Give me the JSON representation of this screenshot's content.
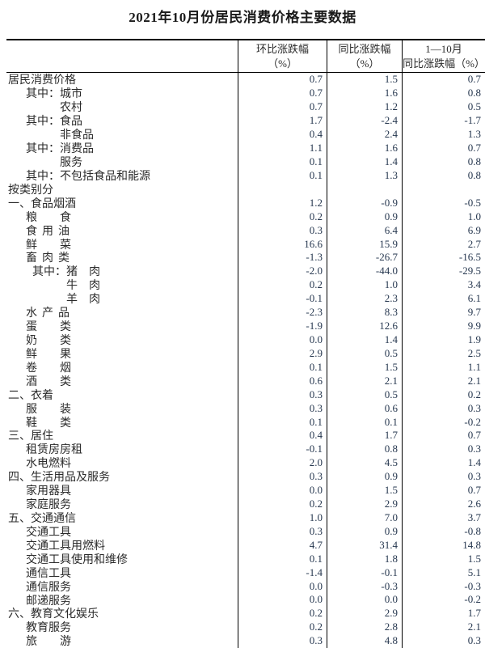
{
  "title": "2021年10月份居民消费价格主要数据",
  "colors": {
    "text": "#2b2b2b",
    "number": "#26374f",
    "border": "#000000",
    "background": "#ffffff"
  },
  "table": {
    "columns": [
      {
        "line1": "",
        "line2": ""
      },
      {
        "line1": "环比涨跌幅",
        "line2": "（%）"
      },
      {
        "line1": "同比涨跌幅",
        "line2": "（%）"
      },
      {
        "line1": "1—10月",
        "line2": "同比涨跌幅（%）"
      }
    ],
    "rows": [
      {
        "label": "居民消费价格",
        "indent": 0,
        "mom": "0.7",
        "yoy": "1.5",
        "ytd": "0.7"
      },
      {
        "label": "其中：城市",
        "indent": 1,
        "mom": "0.7",
        "yoy": "1.6",
        "ytd": "0.8"
      },
      {
        "label": "农村",
        "indent": 2,
        "mom": "0.7",
        "yoy": "1.2",
        "ytd": "0.5"
      },
      {
        "label": "其中：食品",
        "indent": 1,
        "mom": "1.7",
        "yoy": "-2.4",
        "ytd": "-1.7"
      },
      {
        "label": "非食品",
        "indent": 2,
        "mom": "0.4",
        "yoy": "2.4",
        "ytd": "1.3"
      },
      {
        "label": "其中：消费品",
        "indent": 1,
        "mom": "1.1",
        "yoy": "1.6",
        "ytd": "0.7"
      },
      {
        "label": "服务",
        "indent": 2,
        "mom": "0.1",
        "yoy": "1.4",
        "ytd": "0.8"
      },
      {
        "label": "其中：不包括食品和能源",
        "indent": 1,
        "mom": "0.1",
        "yoy": "1.3",
        "ytd": "0.8"
      },
      {
        "label": "按类别分",
        "indent": 0,
        "mom": "",
        "yoy": "",
        "ytd": ""
      },
      {
        "label": "一、食品烟酒",
        "indent": 0,
        "mom": "1.2",
        "yoy": "-0.9",
        "ytd": "-0.5"
      },
      {
        "label": "粮　　食",
        "indent": 1,
        "mom": "0.2",
        "yoy": "0.9",
        "ytd": "1.0"
      },
      {
        "label": "食用油",
        "indent": 1,
        "sp": true,
        "mom": "0.3",
        "yoy": "6.4",
        "ytd": "6.9"
      },
      {
        "label": "鲜　　菜",
        "indent": 1,
        "mom": "16.6",
        "yoy": "15.9",
        "ytd": "2.7"
      },
      {
        "label": "畜肉类",
        "indent": 1,
        "sp": true,
        "mom": "-1.3",
        "yoy": "-26.7",
        "ytd": "-16.5"
      },
      {
        "label": "其中：猪　肉",
        "indent": 3,
        "mom": "-2.0",
        "yoy": "-44.0",
        "ytd": "-29.5"
      },
      {
        "label": "牛　肉",
        "indent": 4,
        "mom": "0.2",
        "yoy": "1.0",
        "ytd": "3.4"
      },
      {
        "label": "羊　肉",
        "indent": 4,
        "mom": "-0.1",
        "yoy": "2.3",
        "ytd": "6.1"
      },
      {
        "label": "水产品",
        "indent": 1,
        "sp": true,
        "mom": "-2.3",
        "yoy": "8.3",
        "ytd": "9.7"
      },
      {
        "label": "蛋　　类",
        "indent": 1,
        "mom": "-1.9",
        "yoy": "12.6",
        "ytd": "9.9"
      },
      {
        "label": "奶　　类",
        "indent": 1,
        "mom": "0.0",
        "yoy": "1.4",
        "ytd": "1.9"
      },
      {
        "label": "鲜　　果",
        "indent": 1,
        "mom": "2.9",
        "yoy": "0.5",
        "ytd": "2.5"
      },
      {
        "label": "卷　　烟",
        "indent": 1,
        "mom": "0.1",
        "yoy": "1.5",
        "ytd": "1.1"
      },
      {
        "label": "酒　　类",
        "indent": 1,
        "mom": "0.6",
        "yoy": "2.1",
        "ytd": "2.1"
      },
      {
        "label": "二、衣着",
        "indent": 0,
        "mom": "0.3",
        "yoy": "0.5",
        "ytd": "0.2"
      },
      {
        "label": "服　　装",
        "indent": 1,
        "mom": "0.3",
        "yoy": "0.6",
        "ytd": "0.3"
      },
      {
        "label": "鞋　　类",
        "indent": 1,
        "mom": "0.1",
        "yoy": "0.1",
        "ytd": "-0.2"
      },
      {
        "label": "三、居住",
        "indent": 0,
        "mom": "0.4",
        "yoy": "1.7",
        "ytd": "0.7"
      },
      {
        "label": "租赁房房租",
        "indent": 1,
        "mom": "-0.1",
        "yoy": "0.8",
        "ytd": "0.3"
      },
      {
        "label": "水电燃料",
        "indent": 1,
        "mom": "2.0",
        "yoy": "4.5",
        "ytd": "1.4"
      },
      {
        "label": "四、生活用品及服务",
        "indent": 0,
        "mom": "0.3",
        "yoy": "0.9",
        "ytd": "0.3"
      },
      {
        "label": "家用器具",
        "indent": 1,
        "mom": "0.0",
        "yoy": "1.5",
        "ytd": "0.7"
      },
      {
        "label": "家庭服务",
        "indent": 1,
        "mom": "0.2",
        "yoy": "2.9",
        "ytd": "2.6"
      },
      {
        "label": "五、交通通信",
        "indent": 0,
        "mom": "1.0",
        "yoy": "7.0",
        "ytd": "3.7"
      },
      {
        "label": "交通工具",
        "indent": 1,
        "mom": "0.3",
        "yoy": "0.9",
        "ytd": "-0.8"
      },
      {
        "label": "交通工具用燃料",
        "indent": 1,
        "mom": "4.7",
        "yoy": "31.4",
        "ytd": "14.8"
      },
      {
        "label": "交通工具使用和维修",
        "indent": 1,
        "mom": "0.1",
        "yoy": "1.8",
        "ytd": "1.5"
      },
      {
        "label": "通信工具",
        "indent": 1,
        "mom": "-1.4",
        "yoy": "-0.1",
        "ytd": "5.1"
      },
      {
        "label": "通信服务",
        "indent": 1,
        "mom": "0.0",
        "yoy": "-0.3",
        "ytd": "-0.3"
      },
      {
        "label": "邮递服务",
        "indent": 1,
        "mom": "0.0",
        "yoy": "0.0",
        "ytd": "-0.2"
      },
      {
        "label": "六、教育文化娱乐",
        "indent": 0,
        "mom": "0.2",
        "yoy": "2.9",
        "ytd": "1.7"
      },
      {
        "label": "教育服务",
        "indent": 1,
        "mom": "0.2",
        "yoy": "2.8",
        "ytd": "2.1"
      },
      {
        "label": "旅　　游",
        "indent": 1,
        "mom": "0.3",
        "yoy": "4.8",
        "ytd": "0.3"
      }
    ]
  }
}
